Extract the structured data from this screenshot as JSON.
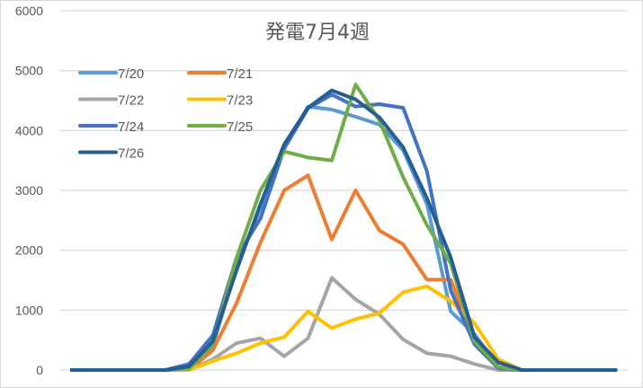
{
  "chart_data": {
    "type": "line",
    "title": "発電7月4週",
    "xlabel": "",
    "ylabel": "",
    "ylim": [
      0,
      6000
    ],
    "yticks": [
      "0",
      "1000",
      "2000",
      "3000",
      "4000",
      "5000",
      "6000"
    ],
    "grid": true,
    "legend": "top-left",
    "x": [
      0,
      1,
      2,
      3,
      4,
      5,
      6,
      7,
      8,
      9,
      10,
      11,
      12,
      13,
      14,
      15,
      16,
      17,
      18,
      19,
      20,
      21,
      22,
      23
    ],
    "series": [
      {
        "name": "7/20",
        "color": "#5b9bd5",
        "values": [
          0,
          0,
          0,
          0,
          0,
          50,
          400,
          1750,
          2700,
          3700,
          4400,
          4350,
          4230,
          4100,
          3670,
          2770,
          980,
          600,
          50,
          0,
          0,
          0,
          0,
          0
        ]
      },
      {
        "name": "7/21",
        "color": "#ed7d31",
        "values": [
          0,
          0,
          0,
          0,
          0,
          0,
          330,
          1120,
          2130,
          3000,
          3250,
          2180,
          3000,
          2330,
          2100,
          1510,
          1510,
          500,
          50,
          0,
          0,
          0,
          0,
          0
        ]
      },
      {
        "name": "7/22",
        "color": "#a5a5a5",
        "values": [
          0,
          0,
          0,
          0,
          0,
          0,
          180,
          450,
          530,
          230,
          530,
          1540,
          1180,
          930,
          510,
          280,
          230,
          100,
          0,
          0,
          0,
          0,
          0,
          0
        ]
      },
      {
        "name": "7/23",
        "color": "#ffc000",
        "values": [
          0,
          0,
          0,
          0,
          0,
          0,
          150,
          280,
          450,
          550,
          980,
          700,
          850,
          950,
          1300,
          1400,
          1150,
          780,
          180,
          0,
          0,
          0,
          0,
          0
        ]
      },
      {
        "name": "7/24",
        "color": "#4472c4",
        "values": [
          0,
          0,
          0,
          0,
          0,
          100,
          580,
          1880,
          2530,
          3700,
          4370,
          4600,
          4400,
          4440,
          4380,
          3320,
          1330,
          430,
          30,
          0,
          0,
          0,
          0,
          0
        ]
      },
      {
        "name": "7/25",
        "color": "#70ad47",
        "values": [
          0,
          0,
          0,
          0,
          0,
          20,
          430,
          1880,
          3000,
          3650,
          3550,
          3500,
          4770,
          4170,
          3220,
          2420,
          1780,
          480,
          50,
          0,
          0,
          0,
          0,
          0
        ]
      },
      {
        "name": "7/26",
        "color": "#255e91",
        "values": [
          0,
          0,
          0,
          0,
          0,
          60,
          480,
          1670,
          2770,
          3770,
          4380,
          4670,
          4520,
          4220,
          3720,
          2870,
          1880,
          550,
          130,
          0,
          0,
          0,
          0,
          0
        ]
      }
    ]
  }
}
